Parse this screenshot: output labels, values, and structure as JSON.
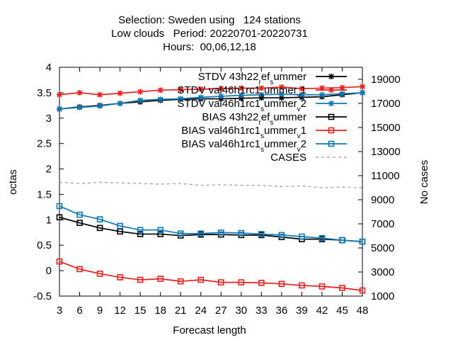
{
  "chart_data": {
    "type": "line",
    "title_lines": [
      "Selection: Sweden using   124 stations",
      "Low clouds   Period: 20220701-20220731",
      "Hours:  00,06,12,18"
    ],
    "xlabel": "Forecast length",
    "ylabel": "octas",
    "y2label": "No cases",
    "xlim": [
      3,
      48
    ],
    "ylim": [
      -0.5,
      4
    ],
    "y2lim": [
      1000,
      20000
    ],
    "x": [
      3,
      6,
      9,
      12,
      15,
      18,
      21,
      24,
      27,
      30,
      33,
      36,
      39,
      42,
      45,
      48
    ],
    "x_ticks": [
      "3",
      "6",
      "9",
      "12",
      "15",
      "18",
      "21",
      "24",
      "27",
      "30",
      "33",
      "36",
      "39",
      "42",
      "45",
      "48"
    ],
    "y_ticks": [
      "-0.5",
      "0",
      "0.5",
      "1",
      "1.5",
      "2",
      "2.5",
      "3",
      "3.5",
      "4"
    ],
    "y2_ticks": [
      "1000",
      "3000",
      "5000",
      "7000",
      "9000",
      "11000",
      "13000",
      "15000",
      "17000",
      "19000"
    ],
    "grid": false,
    "legend_position": "top-right",
    "series": [
      {
        "label": "STDV 43h22",
        "sub": "r",
        "mid": "ef",
        "sub2": "s",
        "tail": "ummer",
        "axis": "y",
        "color": "#000000",
        "marker": "star",
        "dash": "",
        "values": [
          3.18,
          3.22,
          3.25,
          3.29,
          3.32,
          3.35,
          3.37,
          3.38,
          3.38,
          3.39,
          3.4,
          3.4,
          3.41,
          3.42,
          3.46,
          3.5
        ]
      },
      {
        "label": "STDV val46h1rc1",
        "sub": "s",
        "mid": "ummer",
        "sub2": "v",
        "tail": "1",
        "axis": "y",
        "color": "#e8201e",
        "marker": "star",
        "dash": "",
        "values": [
          3.46,
          3.5,
          3.46,
          3.49,
          3.52,
          3.55,
          3.56,
          3.57,
          3.58,
          3.59,
          3.59,
          3.61,
          3.58,
          3.59,
          3.6,
          3.62
        ]
      },
      {
        "label": "STDV val46h1rc1",
        "sub": "s",
        "mid": "ummer",
        "sub2": "v",
        "tail": "2",
        "axis": "y",
        "color": "#0e79b5",
        "marker": "star",
        "dash": "",
        "values": [
          3.18,
          3.21,
          3.24,
          3.29,
          3.35,
          3.37,
          3.38,
          3.41,
          3.43,
          3.45,
          3.46,
          3.47,
          3.46,
          3.46,
          3.48,
          3.5
        ]
      },
      {
        "label": "BIAS 43h22",
        "sub": "r",
        "mid": "ef",
        "sub2": "s",
        "tail": "ummer",
        "axis": "y",
        "color": "#000000",
        "marker": "square",
        "dash": "",
        "values": [
          1.05,
          0.94,
          0.84,
          0.77,
          0.72,
          0.72,
          0.69,
          0.71,
          0.71,
          0.7,
          0.7,
          0.66,
          0.62,
          0.62,
          0.6,
          0.57
        ]
      },
      {
        "label": "BIAS val46h1rc1",
        "sub": "s",
        "mid": "ummer",
        "sub2": "v",
        "tail": "1",
        "axis": "y",
        "color": "#e8201e",
        "marker": "square",
        "dash": "",
        "values": [
          0.18,
          0.03,
          -0.06,
          -0.13,
          -0.18,
          -0.16,
          -0.21,
          -0.18,
          -0.23,
          -0.23,
          -0.24,
          -0.26,
          -0.29,
          -0.31,
          -0.34,
          -0.39
        ]
      },
      {
        "label": "BIAS val46h1rc1",
        "sub": "s",
        "mid": "ummer",
        "sub2": "v",
        "tail": "2",
        "axis": "y",
        "color": "#0e79b5",
        "marker": "square",
        "dash": "",
        "values": [
          1.27,
          1.1,
          1.01,
          0.88,
          0.8,
          0.8,
          0.73,
          0.73,
          0.75,
          0.74,
          0.72,
          0.7,
          0.67,
          0.64,
          0.6,
          0.57
        ]
      },
      {
        "label": "CASES",
        "sub": "",
        "mid": "",
        "sub2": "",
        "tail": "",
        "axis": "y2",
        "color": "#a0a0a0",
        "marker": "none",
        "dash": "4,4",
        "values": [
          10450,
          10350,
          10450,
          10400,
          10350,
          10300,
          10350,
          10200,
          10250,
          10200,
          10200,
          10100,
          10150,
          10000,
          10050,
          10000
        ]
      }
    ]
  }
}
